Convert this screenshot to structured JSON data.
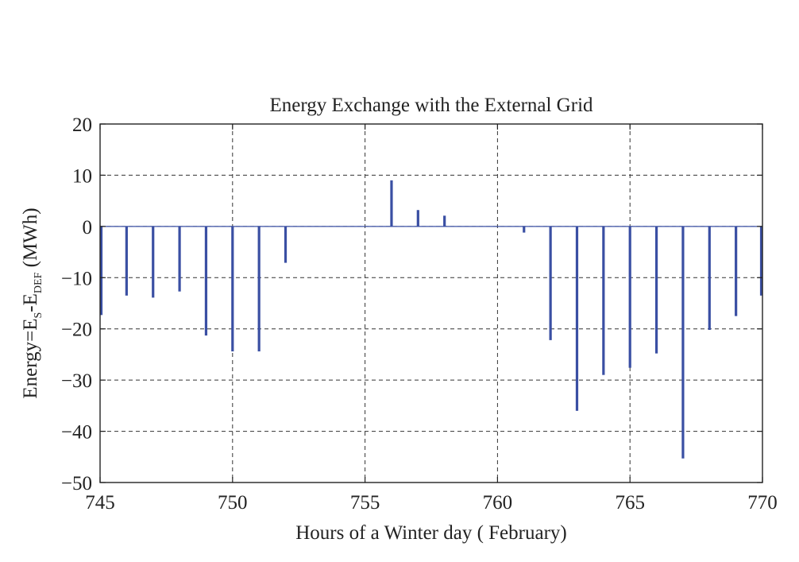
{
  "chart_data": {
    "type": "bar",
    "title": "Energy Exchange with the External Grid",
    "xlabel": "Hours of a Winter day ( February)",
    "ylabel": {
      "prefix": "Energy=E",
      "sub1": "S",
      "mid": "-E",
      "sub2": "DEF",
      "suffix": " (MWh)"
    },
    "xlim": [
      745,
      770
    ],
    "ylim": [
      -50,
      20
    ],
    "xticks": [
      745,
      750,
      755,
      760,
      765,
      770
    ],
    "yticks": [
      20,
      10,
      0,
      -10,
      -20,
      -30,
      -40,
      -50
    ],
    "ytick_labels": [
      "20",
      "10",
      "0",
      "−10",
      "−20",
      "−30",
      "−40",
      "−50"
    ],
    "grid": true,
    "bar_color": "#3a4fa3",
    "series": [
      {
        "x": [
          745,
          746,
          747,
          748,
          749,
          750,
          751,
          752,
          753,
          754,
          755,
          756,
          757,
          758,
          759,
          760,
          761,
          762,
          763,
          764,
          765,
          766,
          767,
          768,
          769,
          770
        ],
        "values": [
          -17.3,
          -13.5,
          -13.9,
          -12.7,
          -21.3,
          -24.4,
          -24.4,
          -7.1,
          0,
          0,
          0,
          9.0,
          3.2,
          2.1,
          0,
          0,
          -1.2,
          -22.2,
          -36.0,
          -29.0,
          -27.6,
          -24.8,
          -45.3,
          -20.2,
          -17.5,
          -13.5
        ]
      }
    ]
  }
}
